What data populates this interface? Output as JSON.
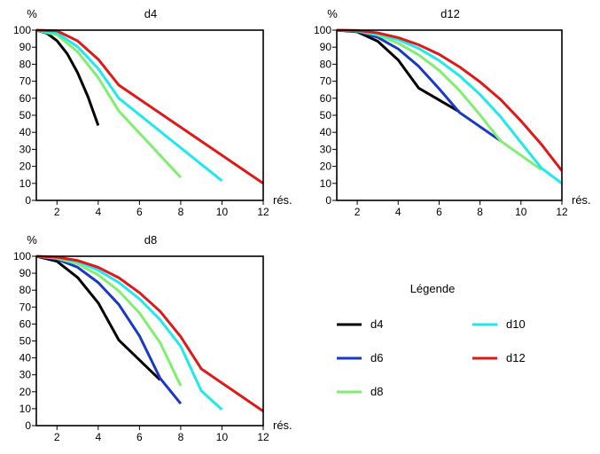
{
  "chart_data": [
    {
      "type": "line",
      "title": "d4",
      "xlabel": "rés.",
      "ylabel": "%",
      "xlim": [
        1,
        12
      ],
      "ylim": [
        0,
        100
      ],
      "xticks": [
        2,
        4,
        6,
        8,
        10,
        12
      ],
      "yticks": [
        0,
        10,
        20,
        30,
        40,
        50,
        60,
        70,
        80,
        90,
        100
      ],
      "series": [
        {
          "name": "d4",
          "color": "#000000",
          "x": [
            1,
            1.5,
            2,
            2.5,
            3,
            3.5,
            4
          ],
          "y": [
            100,
            98.3,
            93.8,
            86.1,
            75,
            61,
            44
          ]
        },
        {
          "name": "d8",
          "color": "#80ee70",
          "x": [
            1,
            2,
            3,
            4,
            5,
            8
          ],
          "y": [
            100,
            97.2,
            87.3,
            72.1,
            52.5,
            13.5
          ]
        },
        {
          "name": "d10",
          "color": "#20e8ee",
          "x": [
            1,
            2,
            3,
            4,
            5,
            10
          ],
          "y": [
            100,
            98.3,
            90.3,
            77.4,
            60,
            11.5
          ]
        },
        {
          "name": "d12",
          "color": "#e01818",
          "x": [
            1,
            2,
            3,
            4,
            5,
            12
          ],
          "y": [
            100,
            99.6,
            93.7,
            82.9,
            67.7,
            10
          ]
        }
      ]
    },
    {
      "type": "line",
      "title": "d12",
      "xlabel": "rés.",
      "ylabel": "%",
      "xlim": [
        1,
        12
      ],
      "ylim": [
        0,
        100
      ],
      "xticks": [
        2,
        4,
        6,
        8,
        10,
        12
      ],
      "yticks": [
        0,
        10,
        20,
        30,
        40,
        50,
        60,
        70,
        80,
        90,
        100
      ],
      "series": [
        {
          "name": "d4",
          "color": "#000000",
          "x": [
            1,
            2,
            3,
            4,
            5,
            7
          ],
          "y": [
            100,
            99,
            93.5,
            82.5,
            66,
            52
          ]
        },
        {
          "name": "d6",
          "color": "#1838c8",
          "x": [
            1,
            2,
            3,
            4,
            5,
            6,
            7,
            9
          ],
          "y": [
            100,
            99.3,
            95.8,
            89,
            78.8,
            65.6,
            51.6,
            35
          ]
        },
        {
          "name": "d8",
          "color": "#80ee70",
          "x": [
            1,
            2,
            3,
            4,
            5,
            6,
            7,
            8,
            9,
            11
          ],
          "y": [
            100,
            99.5,
            97.1,
            92.3,
            85.5,
            76.4,
            64.5,
            50.2,
            35,
            18
          ]
        },
        {
          "name": "d10",
          "color": "#20e8ee",
          "x": [
            1,
            2,
            3,
            4,
            5,
            6,
            7,
            8,
            9,
            10,
            11,
            12
          ],
          "y": [
            100,
            99.7,
            97.8,
            94.4,
            89.3,
            82.2,
            73.2,
            62.2,
            49.2,
            34,
            19,
            10
          ]
        },
        {
          "name": "d12",
          "color": "#e01818",
          "x": [
            1,
            2,
            3,
            4,
            5,
            6,
            7,
            8,
            9,
            10,
            11,
            12
          ],
          "y": [
            100,
            99.8,
            98.4,
            95.6,
            91.4,
            85.8,
            78.4,
            69.6,
            59.3,
            46.7,
            32.9,
            17.4
          ]
        }
      ]
    },
    {
      "type": "line",
      "title": "d8",
      "xlabel": "rés.",
      "ylabel": "%",
      "xlim": [
        1,
        12
      ],
      "ylim": [
        0,
        100
      ],
      "xticks": [
        2,
        4,
        6,
        8,
        10,
        12
      ],
      "yticks": [
        0,
        10,
        20,
        30,
        40,
        50,
        60,
        70,
        80,
        90,
        100
      ],
      "series": [
        {
          "name": "d4",
          "color": "#000000",
          "x": [
            1,
            2,
            3,
            4,
            5,
            7
          ],
          "y": [
            100,
            97,
            87.5,
            72.5,
            50.5,
            27
          ]
        },
        {
          "name": "d6",
          "color": "#1838c8",
          "x": [
            1,
            2,
            3,
            4,
            5,
            6,
            7,
            8
          ],
          "y": [
            100,
            98.3,
            93.5,
            84.5,
            71.5,
            53,
            28,
            13
          ]
        },
        {
          "name": "d8",
          "color": "#80ee70",
          "x": [
            1,
            2,
            3,
            4,
            5,
            6,
            7,
            8
          ],
          "y": [
            100,
            98.8,
            95.5,
            89,
            79.5,
            66.5,
            49,
            23.5
          ]
        },
        {
          "name": "d10",
          "color": "#20e8ee",
          "x": [
            1,
            2,
            3,
            4,
            5,
            6,
            7,
            8,
            9,
            10
          ],
          "y": [
            100,
            99.3,
            96.8,
            91.8,
            84.5,
            74.8,
            62.5,
            46.8,
            20.5,
            9.5
          ]
        },
        {
          "name": "d12",
          "color": "#e01818",
          "x": [
            1,
            2,
            3,
            4,
            5,
            6,
            7,
            8,
            9,
            12
          ],
          "y": [
            100,
            99.5,
            97.5,
            93.5,
            87.3,
            78.5,
            67.5,
            52.5,
            33.5,
            8.5
          ]
        }
      ]
    }
  ],
  "legend": {
    "title": "Légende",
    "placement": "bottom-right",
    "items": [
      {
        "label": "d4",
        "color": "#000000"
      },
      {
        "label": "d10",
        "color": "#20e8ee"
      },
      {
        "label": "d6",
        "color": "#1838c8"
      },
      {
        "label": "d12",
        "color": "#e01818"
      },
      {
        "label": "d8",
        "color": "#80ee70"
      }
    ]
  }
}
